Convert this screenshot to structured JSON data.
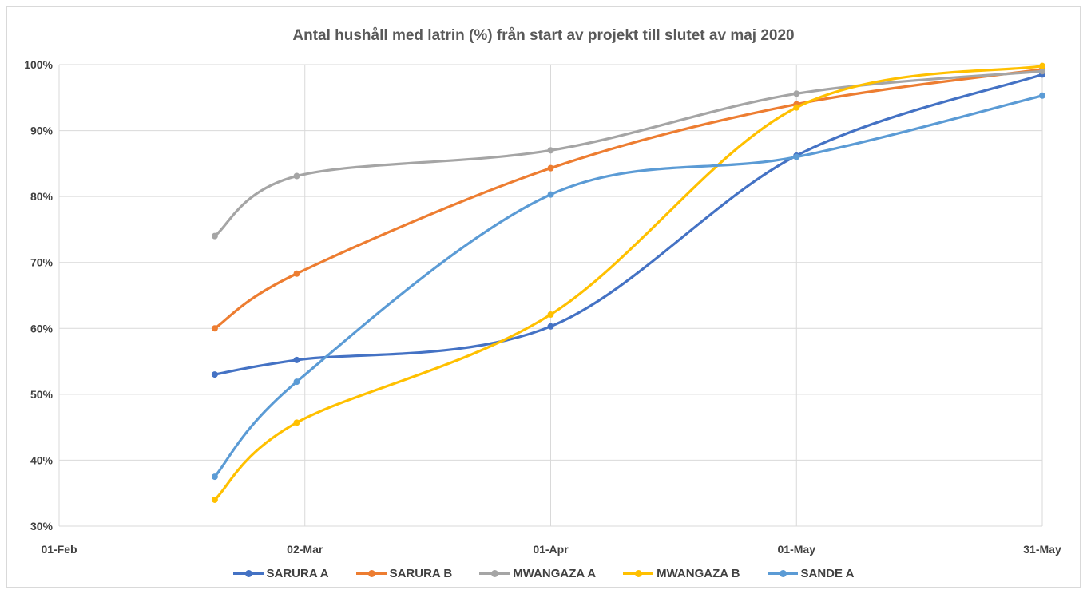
{
  "chart_data": {
    "type": "line",
    "title": "Antal hushåll med latrin (%)  från start av projekt till slutet av maj 2020",
    "xlabel": "",
    "ylabel": "",
    "x_ticks": [
      "01-Feb",
      "02-Mar",
      "01-Apr",
      "01-May",
      "31-May"
    ],
    "x_range": [
      "2020-02-01",
      "2020-05-31"
    ],
    "y_ticks": [
      "30%",
      "40%",
      "50%",
      "60%",
      "70%",
      "80%",
      "90%",
      "100%"
    ],
    "ylim": [
      30,
      100
    ],
    "grid": true,
    "smooth": true,
    "legend_position": "bottom",
    "series": [
      {
        "name": "SARURA A",
        "color": "#4472c4",
        "points": [
          [
            "2020-02-20",
            53
          ],
          [
            "2020-03-01",
            55.2
          ],
          [
            "2020-04-01",
            60.3
          ],
          [
            "2020-05-01",
            86.2
          ],
          [
            "2020-05-31",
            98.5
          ]
        ]
      },
      {
        "name": "SARURA B",
        "color": "#ed7d31",
        "points": [
          [
            "2020-02-20",
            60
          ],
          [
            "2020-03-01",
            68.3
          ],
          [
            "2020-04-01",
            84.3
          ],
          [
            "2020-05-01",
            94
          ],
          [
            "2020-05-31",
            99.3
          ]
        ]
      },
      {
        "name": "MWANGAZA A",
        "color": "#a5a5a5",
        "points": [
          [
            "2020-02-20",
            74
          ],
          [
            "2020-03-01",
            83.1
          ],
          [
            "2020-04-01",
            87
          ],
          [
            "2020-05-01",
            95.6
          ],
          [
            "2020-05-31",
            99
          ]
        ]
      },
      {
        "name": "MWANGAZA B",
        "color": "#ffc000",
        "points": [
          [
            "2020-02-20",
            34
          ],
          [
            "2020-03-01",
            45.7
          ],
          [
            "2020-04-01",
            62.1
          ],
          [
            "2020-05-01",
            93.5
          ],
          [
            "2020-05-31",
            99.8
          ]
        ]
      },
      {
        "name": "SANDE A",
        "color": "#5b9bd5",
        "points": [
          [
            "2020-02-20",
            37.5
          ],
          [
            "2020-03-01",
            51.9
          ],
          [
            "2020-04-01",
            80.3
          ],
          [
            "2020-05-01",
            86
          ],
          [
            "2020-05-31",
            95.3
          ]
        ]
      }
    ]
  }
}
